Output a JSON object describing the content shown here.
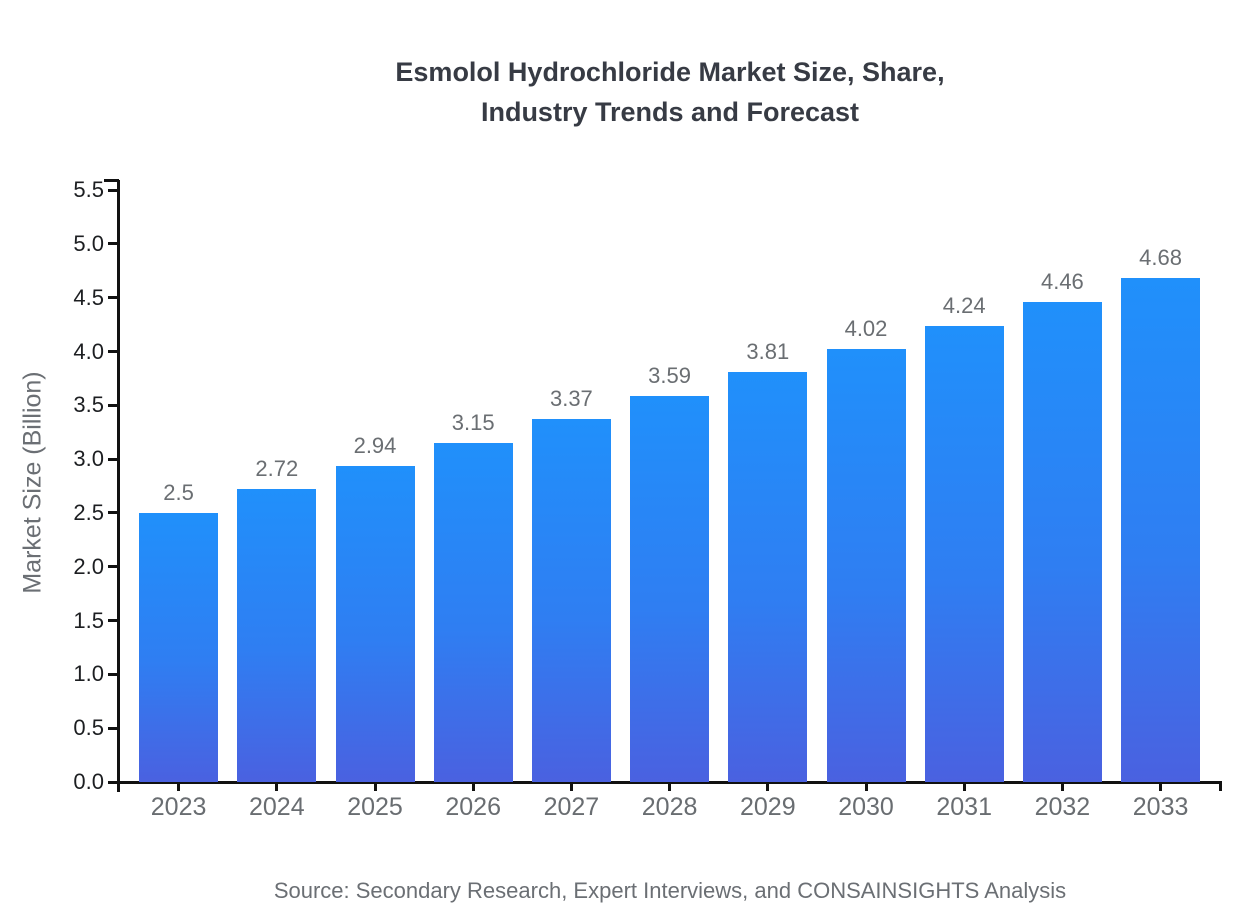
{
  "title": {
    "line1": "Esmolol Hydrochloride Market Size, Share,",
    "line2": "Industry Trends and Forecast"
  },
  "source": "Source: Secondary Research, Expert Interviews, and CONSAINSIGHTS Analysis",
  "chart_data": {
    "type": "bar",
    "title": "Esmolol Hydrochloride Market Size, Share, Industry Trends and Forecast",
    "categories": [
      "2023",
      "2024",
      "2025",
      "2026",
      "2027",
      "2028",
      "2029",
      "2030",
      "2031",
      "2032",
      "2033"
    ],
    "values": [
      2.5,
      2.72,
      2.94,
      3.15,
      3.37,
      3.59,
      3.81,
      4.02,
      4.24,
      4.46,
      4.68
    ],
    "bar_labels": [
      "2.5",
      "2.72",
      "2.94",
      "3.15",
      "3.37",
      "3.59",
      "3.81",
      "4.02",
      "4.24",
      "4.46",
      "4.68"
    ],
    "xlabel": "",
    "ylabel": "Market Size (Billion)",
    "ylim": [
      0,
      5.5
    ],
    "ytick_labels": [
      "0.0",
      "0.5",
      "1.0",
      "1.5",
      "2.0",
      "2.5",
      "3.0",
      "3.5",
      "4.0",
      "4.5",
      "5.0",
      "5.5"
    ],
    "grid": false,
    "legend": "none",
    "colors": {
      "bar_gradient_top": "#2090fb",
      "bar_gradient_bottom": "#4a61e0",
      "axis": "#111111",
      "ytick_text": "#1c1e21",
      "xtick_text": "#696d71",
      "bar_value_text": "#6a6e72",
      "title_text": "#373b44",
      "muted_text": "#6b6f74"
    }
  }
}
